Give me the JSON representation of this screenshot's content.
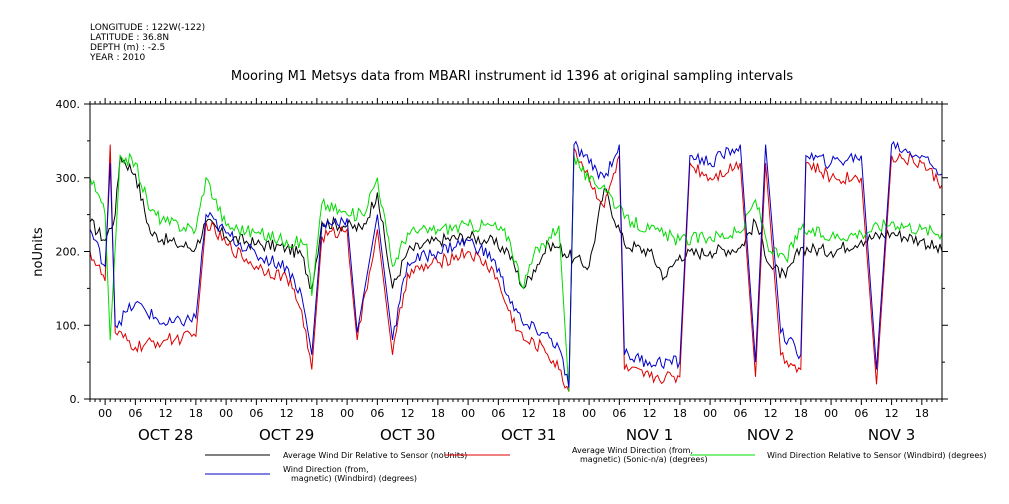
{
  "meta": {
    "longitude": "LONGITUDE : 122W(-122)",
    "latitude": "LATITUDE : 36.8N",
    "depth": "DEPTH (m) : -2.5",
    "year": "YEAR : 2010"
  },
  "chart_data": {
    "type": "line",
    "title": "Mooring M1 Metsys data from MBARI instrument id 1396 at original sampling intervals",
    "ylabel": "noUnits",
    "xlabel": "",
    "xlim": [
      "2010-10-27T21:00",
      "2010-11-03T22:00"
    ],
    "ylim": [
      0,
      400
    ],
    "yticks": [
      0,
      100,
      200,
      300,
      400
    ],
    "ytick_labels": [
      "0.",
      "100.",
      "200.",
      "300.",
      "400."
    ],
    "x_hour_ticks": [
      "00",
      "06",
      "12",
      "18"
    ],
    "day_labels": [
      {
        "date": "2010-10-28",
        "label": "OCT 28"
      },
      {
        "date": "2010-10-29",
        "label": "OCT 29"
      },
      {
        "date": "2010-10-30",
        "label": "OCT 30"
      },
      {
        "date": "2010-10-31",
        "label": "OCT 31"
      },
      {
        "date": "2010-11-01",
        "label": "NOV  1"
      },
      {
        "date": "2010-11-02",
        "label": "NOV  2"
      },
      {
        "date": "2010-11-03",
        "label": "NOV  3"
      }
    ],
    "grid": false,
    "legend_position": "bottom",
    "series": [
      {
        "name": "Average Wind Dir Relative to Sensor (noUnits)",
        "color": "#000000",
        "points": [
          [
            "2010-10-27T21:00",
            240
          ],
          [
            "2010-10-28T00:00",
            215
          ],
          [
            "2010-10-28T02:00",
            250
          ],
          [
            "2010-10-28T03:00",
            330
          ],
          [
            "2010-10-28T06:00",
            305
          ],
          [
            "2010-10-28T09:00",
            225
          ],
          [
            "2010-10-28T14:00",
            210
          ],
          [
            "2010-10-28T18:00",
            205
          ],
          [
            "2010-10-28T20:00",
            240
          ],
          [
            "2010-10-29T00:00",
            220
          ],
          [
            "2010-10-29T06:00",
            210
          ],
          [
            "2010-10-29T12:00",
            205
          ],
          [
            "2010-10-29T15:00",
            195
          ],
          [
            "2010-10-29T17:00",
            150
          ],
          [
            "2010-10-29T19:00",
            240
          ],
          [
            "2010-10-30T00:00",
            235
          ],
          [
            "2010-10-30T03:00",
            230
          ],
          [
            "2010-10-30T06:00",
            280
          ],
          [
            "2010-10-30T09:00",
            150
          ],
          [
            "2010-10-30T12:00",
            200
          ],
          [
            "2010-10-30T18:00",
            215
          ],
          [
            "2010-10-31T00:00",
            220
          ],
          [
            "2010-10-31T04:00",
            215
          ],
          [
            "2010-10-31T08:00",
            200
          ],
          [
            "2010-10-31T11:00",
            150
          ],
          [
            "2010-10-31T13:00",
            175
          ],
          [
            "2010-10-31T16:00",
            210
          ],
          [
            "2010-10-31T18:00",
            205
          ],
          [
            "2010-10-31T21:00",
            190
          ],
          [
            "2010-11-01T00:00",
            180
          ],
          [
            "2010-11-01T03:00",
            285
          ],
          [
            "2010-11-01T07:00",
            210
          ],
          [
            "2010-11-01T12:00",
            200
          ],
          [
            "2010-11-01T15:00",
            165
          ],
          [
            "2010-11-01T18:00",
            195
          ],
          [
            "2010-11-02T00:00",
            200
          ],
          [
            "2010-11-02T06:00",
            205
          ],
          [
            "2010-11-02T09:00",
            240
          ],
          [
            "2010-11-02T12:00",
            180
          ],
          [
            "2010-11-02T15:00",
            165
          ],
          [
            "2010-11-02T18:00",
            205
          ],
          [
            "2010-11-03T00:00",
            200
          ],
          [
            "2010-11-03T06:00",
            215
          ],
          [
            "2010-11-03T12:00",
            225
          ],
          [
            "2010-11-03T18:00",
            215
          ],
          [
            "2010-11-03T22:00",
            200
          ]
        ]
      },
      {
        "name": "Average Wind Direction (from, magnetic) (Sonic-n/a) (degrees)",
        "color": "#dd0000",
        "points": [
          [
            "2010-10-27T21:00",
            200
          ],
          [
            "2010-10-28T00:00",
            160
          ],
          [
            "2010-10-28T01:00",
            345
          ],
          [
            "2010-10-28T02:00",
            90
          ],
          [
            "2010-10-28T06:00",
            70
          ],
          [
            "2010-10-28T12:00",
            80
          ],
          [
            "2010-10-28T18:00",
            85
          ],
          [
            "2010-10-28T20:00",
            240
          ],
          [
            "2010-10-29T00:00",
            210
          ],
          [
            "2010-10-29T06:00",
            180
          ],
          [
            "2010-10-29T12:00",
            165
          ],
          [
            "2010-10-29T15:00",
            120
          ],
          [
            "2010-10-29T17:00",
            40
          ],
          [
            "2010-10-29T19:00",
            220
          ],
          [
            "2010-10-30T00:00",
            230
          ],
          [
            "2010-10-30T02:00",
            80
          ],
          [
            "2010-10-30T06:00",
            230
          ],
          [
            "2010-10-30T09:00",
            60
          ],
          [
            "2010-10-30T12:00",
            170
          ],
          [
            "2010-10-30T18:00",
            185
          ],
          [
            "2010-10-31T00:00",
            200
          ],
          [
            "2010-10-31T05:00",
            175
          ],
          [
            "2010-10-31T08:00",
            120
          ],
          [
            "2010-10-31T11:00",
            80
          ],
          [
            "2010-10-31T15:00",
            70
          ],
          [
            "2010-10-31T18:00",
            40
          ],
          [
            "2010-10-31T20:00",
            10
          ],
          [
            "2010-10-31T21:00",
            340
          ],
          [
            "2010-11-01T00:00",
            300
          ],
          [
            "2010-11-01T03:00",
            260
          ],
          [
            "2010-11-01T06:00",
            330
          ],
          [
            "2010-11-01T07:00",
            40
          ],
          [
            "2010-11-01T12:00",
            30
          ],
          [
            "2010-11-01T18:00",
            30
          ],
          [
            "2010-11-01T20:00",
            320
          ],
          [
            "2010-11-02T00:00",
            300
          ],
          [
            "2010-11-02T06:00",
            320
          ],
          [
            "2010-11-02T09:00",
            30
          ],
          [
            "2010-11-02T11:00",
            320
          ],
          [
            "2010-11-02T14:00",
            60
          ],
          [
            "2010-11-02T18:00",
            40
          ],
          [
            "2010-11-02T19:00",
            320
          ],
          [
            "2010-11-03T00:00",
            300
          ],
          [
            "2010-11-03T06:00",
            300
          ],
          [
            "2010-11-03T09:00",
            20
          ],
          [
            "2010-11-03T12:00",
            330
          ],
          [
            "2010-11-03T18:00",
            320
          ],
          [
            "2010-11-03T22:00",
            290
          ]
        ]
      },
      {
        "name": "Wind Direction Relative to Sensor (Windbird) (degrees)",
        "color": "#00dd00",
        "points": [
          [
            "2010-10-27T21:00",
            300
          ],
          [
            "2010-10-28T00:00",
            250
          ],
          [
            "2010-10-28T01:00",
            80
          ],
          [
            "2010-10-28T03:00",
            330
          ],
          [
            "2010-10-28T06:00",
            320
          ],
          [
            "2010-10-28T09:00",
            255
          ],
          [
            "2010-10-28T12:00",
            240
          ],
          [
            "2010-10-28T18:00",
            230
          ],
          [
            "2010-10-28T20:00",
            300
          ],
          [
            "2010-10-29T00:00",
            235
          ],
          [
            "2010-10-29T06:00",
            225
          ],
          [
            "2010-10-29T12:00",
            215
          ],
          [
            "2010-10-29T16:00",
            210
          ],
          [
            "2010-10-29T17:00",
            140
          ],
          [
            "2010-10-29T19:00",
            265
          ],
          [
            "2010-10-30T00:00",
            250
          ],
          [
            "2010-10-30T03:00",
            250
          ],
          [
            "2010-10-30T06:00",
            300
          ],
          [
            "2010-10-30T09:00",
            180
          ],
          [
            "2010-10-30T12:00",
            225
          ],
          [
            "2010-10-30T18:00",
            230
          ],
          [
            "2010-10-31T00:00",
            235
          ],
          [
            "2010-10-31T05:00",
            235
          ],
          [
            "2010-10-31T08:00",
            220
          ],
          [
            "2010-10-31T11:00",
            150
          ],
          [
            "2010-10-31T13:00",
            195
          ],
          [
            "2010-10-31T18:00",
            235
          ],
          [
            "2010-10-31T20:00",
            10
          ],
          [
            "2010-10-31T21:00",
            330
          ],
          [
            "2010-11-01T00:00",
            295
          ],
          [
            "2010-11-01T03:00",
            290
          ],
          [
            "2010-11-01T07:00",
            245
          ],
          [
            "2010-11-01T12:00",
            230
          ],
          [
            "2010-11-01T18:00",
            215
          ],
          [
            "2010-11-02T00:00",
            220
          ],
          [
            "2010-11-02T06:00",
            225
          ],
          [
            "2010-11-02T09:00",
            270
          ],
          [
            "2010-11-02T12:00",
            200
          ],
          [
            "2010-11-02T15:00",
            190
          ],
          [
            "2010-11-02T18:00",
            230
          ],
          [
            "2010-11-03T00:00",
            220
          ],
          [
            "2010-11-03T06:00",
            225
          ],
          [
            "2010-11-03T12:00",
            240
          ],
          [
            "2010-11-03T18:00",
            230
          ],
          [
            "2010-11-03T22:00",
            225
          ]
        ]
      },
      {
        "name": "Wind Direction (from, magnetic) (Windbird) (degrees)",
        "color": "#0000cc",
        "points": [
          [
            "2010-10-27T21:00",
            230
          ],
          [
            "2010-10-28T00:00",
            180
          ],
          [
            "2010-10-28T01:00",
            320
          ],
          [
            "2010-10-28T02:00",
            100
          ],
          [
            "2010-10-28T06:00",
            130
          ],
          [
            "2010-10-28T12:00",
            100
          ],
          [
            "2010-10-28T18:00",
            110
          ],
          [
            "2010-10-28T20:00",
            250
          ],
          [
            "2010-10-29T00:00",
            225
          ],
          [
            "2010-10-29T06:00",
            195
          ],
          [
            "2010-10-29T12:00",
            180
          ],
          [
            "2010-10-29T15:00",
            140
          ],
          [
            "2010-10-29T17:00",
            60
          ],
          [
            "2010-10-29T19:00",
            235
          ],
          [
            "2010-10-30T00:00",
            245
          ],
          [
            "2010-10-30T02:00",
            90
          ],
          [
            "2010-10-30T06:00",
            250
          ],
          [
            "2010-10-30T09:00",
            80
          ],
          [
            "2010-10-30T12:00",
            185
          ],
          [
            "2010-10-30T18:00",
            200
          ],
          [
            "2010-10-31T00:00",
            215
          ],
          [
            "2010-10-31T05:00",
            190
          ],
          [
            "2010-10-31T08:00",
            140
          ],
          [
            "2010-10-31T11:00",
            100
          ],
          [
            "2010-10-31T15:00",
            90
          ],
          [
            "2010-10-31T18:00",
            70
          ],
          [
            "2010-10-31T20:00",
            15
          ],
          [
            "2010-10-31T21:00",
            345
          ],
          [
            "2010-11-01T00:00",
            320
          ],
          [
            "2010-11-01T03:00",
            300
          ],
          [
            "2010-11-01T06:00",
            345
          ],
          [
            "2010-11-01T07:00",
            60
          ],
          [
            "2010-11-01T12:00",
            50
          ],
          [
            "2010-11-01T18:00",
            50
          ],
          [
            "2010-11-01T20:00",
            330
          ],
          [
            "2010-11-02T00:00",
            320
          ],
          [
            "2010-11-02T06:00",
            345
          ],
          [
            "2010-11-02T09:00",
            50
          ],
          [
            "2010-11-02T11:00",
            345
          ],
          [
            "2010-11-02T14:00",
            90
          ],
          [
            "2010-11-02T18:00",
            60
          ],
          [
            "2010-11-02T19:00",
            330
          ],
          [
            "2010-11-03T00:00",
            320
          ],
          [
            "2010-11-03T06:00",
            330
          ],
          [
            "2010-11-03T09:00",
            40
          ],
          [
            "2010-11-03T12:00",
            345
          ],
          [
            "2010-11-03T18:00",
            330
          ],
          [
            "2010-11-03T22:00",
            305
          ]
        ]
      }
    ]
  }
}
